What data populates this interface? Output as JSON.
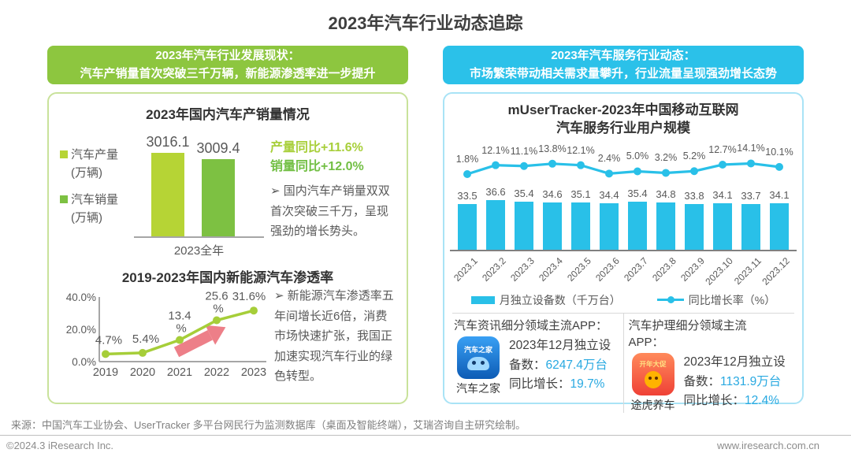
{
  "title": "2023年汽车行业动态追踪",
  "colors": {
    "green_banner": "#8dc63f",
    "cyan_banner": "#2bc1e9",
    "bar_production": "#b6d435",
    "bar_sales": "#7dc142",
    "nev_line": "#a6ce39",
    "trend_arrow": "#ed7f88",
    "cyan": "#29c0e8",
    "cyan_text": "#29a9e1",
    "text_gray": "#595959"
  },
  "left": {
    "header_line1": "2023年汽车行业发展现状：",
    "header_line2": "汽车产销量首次突破三千万辆，新能源渗透率进一步提升",
    "chart1": {
      "title": "2023年国内汽车产销量情况",
      "legend": [
        {
          "label": "汽车产量",
          "unit": "(万辆)"
        },
        {
          "label": "汽车销量",
          "unit": "(万辆)"
        }
      ],
      "x_label": "2023全年",
      "highlight1": "产量同比+11.6%",
      "highlight2": "销量同比+12.0%",
      "note": "➢ 国内汽车产销量双双首次突破三千万，呈现强劲的增长势头。"
    },
    "chart2": {
      "title": "2019-2023年国内新能源汽车渗透率",
      "note": "➢ 新能源汽车渗透率五年间增长近6倍，消费市场快速扩张，我国正加速实现汽车行业的绿色转型。"
    }
  },
  "right": {
    "header_line1": "2023年汽车服务行业动态：",
    "header_line2": "市场繁荣带动相关需求量攀升，行业流量呈现强劲增长态势",
    "chart": {
      "title_line1": "mUserTracker-2023年中国移动互联网",
      "title_line2": "汽车服务行业用户规模",
      "legend_bar": "月独立设备数（千万台）",
      "legend_line": "同比增长率（%）"
    },
    "apps": [
      {
        "category": "汽车资讯细分领域主流APP：",
        "icon_text": "汽车之家",
        "name": "汽车之家",
        "devices_label": "2023年12月独立设备数：",
        "devices_value": "6247.4万台",
        "growth_label": "同比增长：",
        "growth_value": "19.7%"
      },
      {
        "category": "汽车护理细分领域主流APP：",
        "icon_text": "开年大促",
        "name": "途虎养车",
        "devices_label": "2023年12月独立设备数：",
        "devices_value": "1131.9万台",
        "growth_label": "同比增长：",
        "growth_value": "12.4%"
      }
    ]
  },
  "footer": {
    "source": "来源：中国汽车工业协会、UserTracker 多平台网民行为监测数据库（桌面及智能终端），艾瑞咨询自主研究绘制。",
    "copyright": "©2024.3 iResearch Inc.",
    "website": "www.iresearch.com.cn"
  },
  "chart_data": [
    {
      "type": "bar",
      "title": "2023年国内汽车产销量情况",
      "categories": [
        "2023全年"
      ],
      "series": [
        {
          "name": "汽车产量(万辆)",
          "values": [
            3016.1
          ],
          "color": "#b6d435"
        },
        {
          "name": "汽车销量(万辆)",
          "values": [
            3009.4
          ],
          "color": "#7dc142"
        }
      ],
      "annotations": [
        "产量同比+11.6%",
        "销量同比+12.0%"
      ],
      "ylabel": "万辆"
    },
    {
      "type": "line",
      "title": "2019-2023年国内新能源汽车渗透率",
      "x": [
        "2019",
        "2020",
        "2021",
        "2022",
        "2023"
      ],
      "values": [
        4.7,
        5.4,
        13.4,
        25.6,
        31.6
      ],
      "labels": [
        "4.7%",
        "5.4%",
        "13.4%",
        "25.6%",
        "31.6%"
      ],
      "yticks": [
        "0.0%",
        "20.0%",
        "40.0%"
      ],
      "ylim": [
        0,
        40
      ],
      "color": "#a6ce39"
    },
    {
      "type": "bar+line",
      "title": "mUserTracker-2023年中国移动互联网汽车服务行业用户规模",
      "categories": [
        "2023.1",
        "2023.2",
        "2023.3",
        "2023.4",
        "2023.5",
        "2023.6",
        "2023.7",
        "2023.8",
        "2023.9",
        "2023.10",
        "2023.11",
        "2023.12"
      ],
      "series": [
        {
          "name": "月独立设备数（千万台）",
          "type": "bar",
          "values": [
            33.5,
            36.6,
            35.4,
            34.6,
            35.1,
            34.4,
            35.4,
            34.8,
            33.8,
            34.1,
            33.7,
            34.1
          ],
          "color": "#29c0e8"
        },
        {
          "name": "同比增长率（%）",
          "type": "line",
          "values": [
            1.8,
            12.1,
            11.1,
            13.8,
            12.1,
            2.4,
            5.0,
            3.2,
            5.2,
            12.7,
            14.1,
            10.1
          ],
          "labels": [
            "1.8%",
            "12.1%",
            "11.1%",
            "13.8%",
            "12.1%",
            "2.4%",
            "5.0%",
            "3.2%",
            "5.2%",
            "12.7%",
            "14.1%",
            "10.1%"
          ],
          "color": "#29c0e8"
        }
      ],
      "legend_position": "bottom"
    }
  ]
}
